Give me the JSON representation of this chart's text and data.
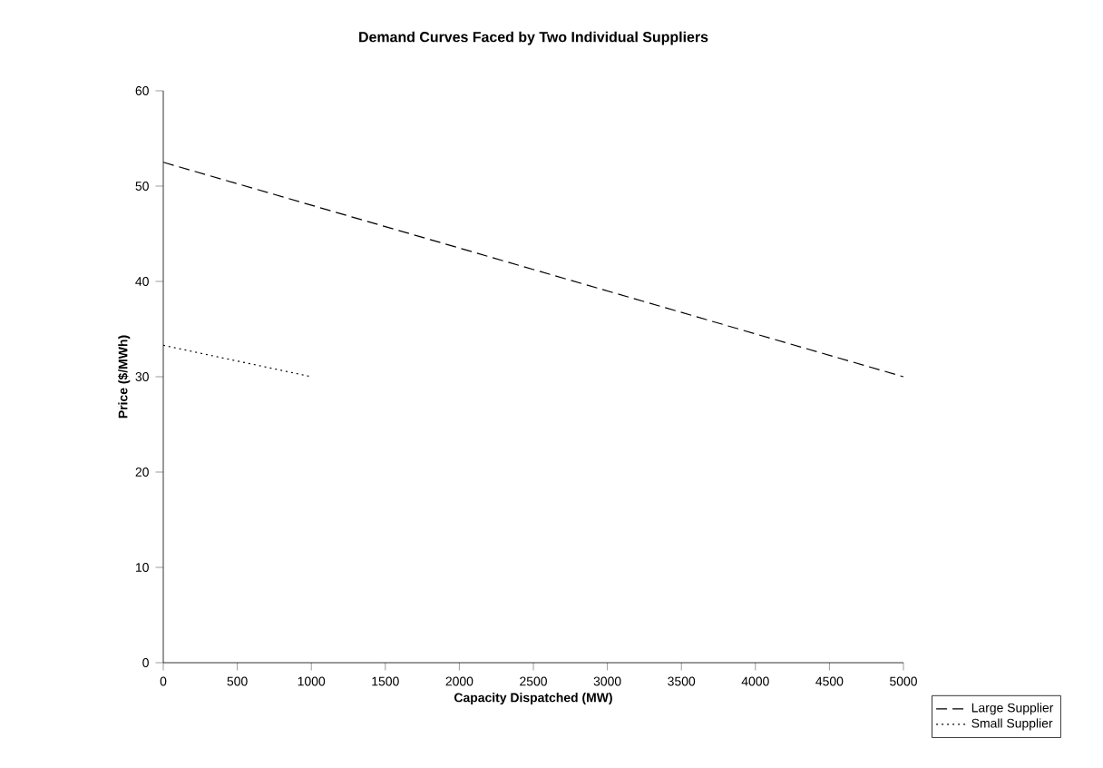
{
  "chart_data": {
    "type": "line",
    "title": "Demand Curves Faced by Two Individual Suppliers",
    "xlabel": "Capacity Dispatched (MW)",
    "ylabel": "Price ($/MWh)",
    "series": [
      {
        "name": "Large Supplier",
        "color": "#000000",
        "line_style": "dashed",
        "x": [
          0,
          5000
        ],
        "values": [
          52.5,
          30
        ]
      },
      {
        "name": "Small Supplier",
        "color": "#000000",
        "line_style": "dotted",
        "x": [
          0,
          1000
        ],
        "values": [
          33.3,
          30
        ]
      }
    ],
    "xlim": [
      0,
      5000
    ],
    "ylim": [
      0,
      60
    ],
    "xticks": [
      0,
      500,
      1000,
      1500,
      2000,
      2500,
      3000,
      3500,
      4000,
      4500,
      5000
    ],
    "yticks": [
      0,
      10,
      20,
      30,
      40,
      50,
      60
    ],
    "grid": false,
    "legend": "bottom right",
    "marker": "none"
  }
}
